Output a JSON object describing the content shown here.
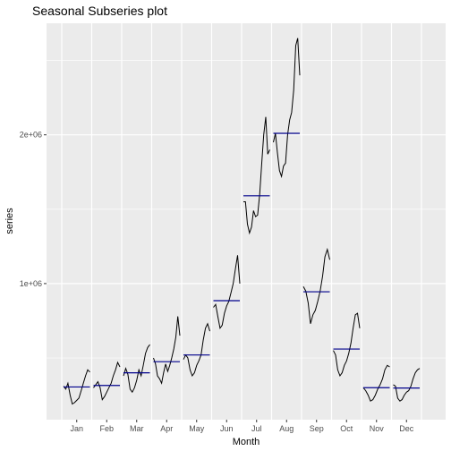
{
  "chart_data": {
    "type": "line",
    "title": "Seasonal Subseries plot",
    "xlabel": "Month",
    "ylabel": "series",
    "y_ticks": [
      {
        "value": 1000000,
        "label": "1e+06"
      },
      {
        "value": 2000000,
        "label": "2e+06"
      }
    ],
    "ylim": [
      85000,
      2750000
    ],
    "grid": true,
    "colors": {
      "panel_background": "#ebebeb",
      "grid": "#ffffff",
      "series_line": "#000000",
      "mean_line": "#00008b"
    },
    "months": [
      {
        "label": "Jan",
        "mean": 305000,
        "values": [
          310000,
          290000,
          330000,
          250000,
          190000,
          200000,
          215000,
          230000,
          280000,
          330000,
          380000,
          420000,
          405000
        ]
      },
      {
        "label": "Feb",
        "mean": 315000,
        "values": [
          300000,
          320000,
          340000,
          300000,
          220000,
          240000,
          270000,
          300000,
          330000,
          380000,
          420000,
          470000,
          440000
        ]
      },
      {
        "label": "Mar",
        "mean": 400000,
        "values": [
          380000,
          430000,
          390000,
          290000,
          270000,
          300000,
          350000,
          420000,
          380000,
          450000,
          530000,
          570000,
          590000
        ]
      },
      {
        "label": "Apr",
        "mean": 475000,
        "values": [
          500000,
          460000,
          380000,
          360000,
          330000,
          400000,
          460000,
          410000,
          450000,
          500000,
          560000,
          640000,
          780000,
          650000
        ]
      },
      {
        "label": "May",
        "mean": 520000,
        "values": [
          490000,
          520000,
          500000,
          420000,
          380000,
          400000,
          450000,
          480000,
          520000,
          620000,
          700000,
          730000,
          680000
        ]
      },
      {
        "label": "Jun",
        "mean": 885000,
        "values": [
          840000,
          860000,
          780000,
          700000,
          720000,
          800000,
          850000,
          880000,
          940000,
          1000000,
          1100000,
          1190000,
          1000000
        ]
      },
      {
        "label": "Jul",
        "mean": 1590000,
        "values": [
          1550000,
          1550000,
          1400000,
          1340000,
          1380000,
          1490000,
          1450000,
          1460000,
          1600000,
          1800000,
          2000000,
          2120000,
          1870000,
          1900000
        ]
      },
      {
        "label": "Aug",
        "mean": 2010000,
        "values": [
          1950000,
          2010000,
          1880000,
          1760000,
          1720000,
          1790000,
          1810000,
          2000000,
          2100000,
          2150000,
          2300000,
          2600000,
          2650000,
          2400000
        ]
      },
      {
        "label": "Sep",
        "mean": 945000,
        "values": [
          980000,
          950000,
          870000,
          730000,
          790000,
          820000,
          880000,
          950000,
          1050000,
          1180000,
          1230000,
          1160000
        ]
      },
      {
        "label": "Oct",
        "mean": 560000,
        "values": [
          550000,
          520000,
          420000,
          380000,
          400000,
          450000,
          480000,
          530000,
          600000,
          700000,
          790000,
          800000,
          700000
        ]
      },
      {
        "label": "Nov",
        "mean": 300000,
        "values": [
          300000,
          280000,
          250000,
          210000,
          220000,
          250000,
          290000,
          320000,
          360000,
          420000,
          450000,
          440000
        ]
      },
      {
        "label": "Dec",
        "mean": 298000,
        "values": [
          320000,
          310000,
          230000,
          210000,
          220000,
          250000,
          270000,
          280000,
          310000,
          360000,
          400000,
          420000,
          430000
        ]
      }
    ]
  }
}
